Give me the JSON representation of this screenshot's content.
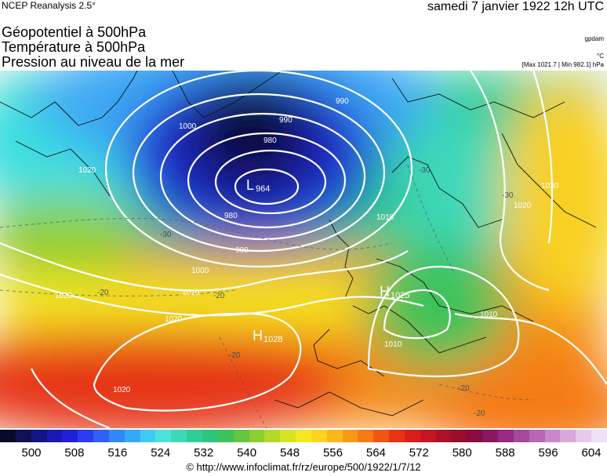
{
  "header": {
    "source": "NCEP Reanalysis 2.5°",
    "date": "samedi 7 janvier 1922 12h UTC"
  },
  "titles": {
    "line1": "Géopotentiel à 500hPa",
    "line2": "Température à 500hPa",
    "line3": "Pression au niveau de la mer"
  },
  "units": {
    "geopotential": "gpdam",
    "temperature": "°C",
    "pressure_range": "[Max 1021.7 | Min 982.1] hPa"
  },
  "map": {
    "low": {
      "letter": "L",
      "value": "964"
    },
    "highs": [
      {
        "letter": "H",
        "value": "1028"
      },
      {
        "letter": "H",
        "value": "1025"
      }
    ],
    "isobar_labels": [
      "990",
      "980",
      "990",
      "980",
      "990",
      "1000",
      "1010",
      "1020",
      "1020",
      "1010",
      "1020",
      "1030",
      "1020",
      "1010",
      "1010",
      "1020",
      "1000"
    ],
    "temp_labels": [
      "-30",
      "-20",
      "-20",
      "-20",
      "-20",
      "-30",
      "-30",
      "-20"
    ]
  },
  "legend": {
    "colors": [
      "#0a0a28",
      "#101055",
      "#141485",
      "#1a1ab0",
      "#2020d6",
      "#2a3cf0",
      "#2e62f5",
      "#3088f7",
      "#34aaf7",
      "#3ecaf2",
      "#4ee0dc",
      "#3ed8b8",
      "#2ecf96",
      "#2bc679",
      "#3cc25a",
      "#62c63e",
      "#8ccf30",
      "#b4d82a",
      "#d8e224",
      "#f4e820",
      "#fcd41c",
      "#fcb81a",
      "#f89a18",
      "#f47a16",
      "#ee5614",
      "#e63414",
      "#d81e1a",
      "#c41620",
      "#ae1226",
      "#980e2c",
      "#880c40",
      "#8a1660",
      "#962a80",
      "#a6489c",
      "#b866b6",
      "#c888cc",
      "#d8a8dc",
      "#e6c8ea",
      "#f0e0f4"
    ],
    "tick_labels": [
      "500",
      "508",
      "516",
      "524",
      "532",
      "540",
      "548",
      "556",
      "564",
      "572",
      "580",
      "588",
      "596",
      "604"
    ]
  },
  "footer": {
    "credit": "© http://www.infoclimat.fr/rz/europe/500/1922/1/7/12"
  }
}
